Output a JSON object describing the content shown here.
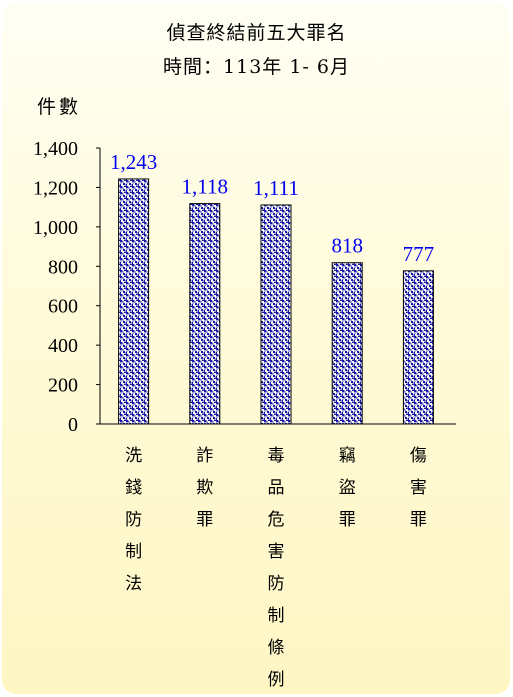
{
  "chart_data": {
    "type": "bar",
    "title": "偵查終結前五大罪名",
    "subtitle": "時間：113年 1- 6月",
    "ylabel": "件數",
    "xlabel": "",
    "categories": [
      "洗錢防制法",
      "詐欺罪",
      "毒品危害防制條例",
      "竊盜罪",
      "傷害罪"
    ],
    "values": [
      1243,
      1118,
      1111,
      818,
      777
    ],
    "data_labels": [
      "1,243",
      "1,118",
      "1,111",
      "818",
      "777"
    ],
    "yticks": [
      "0",
      "200",
      "400",
      "600",
      "800",
      "1,000",
      "1,200",
      "1,400"
    ],
    "ylim": [
      0,
      1400
    ],
    "grid": false,
    "bar_color": "#1a1aa0",
    "label_color": "#0000ee"
  }
}
